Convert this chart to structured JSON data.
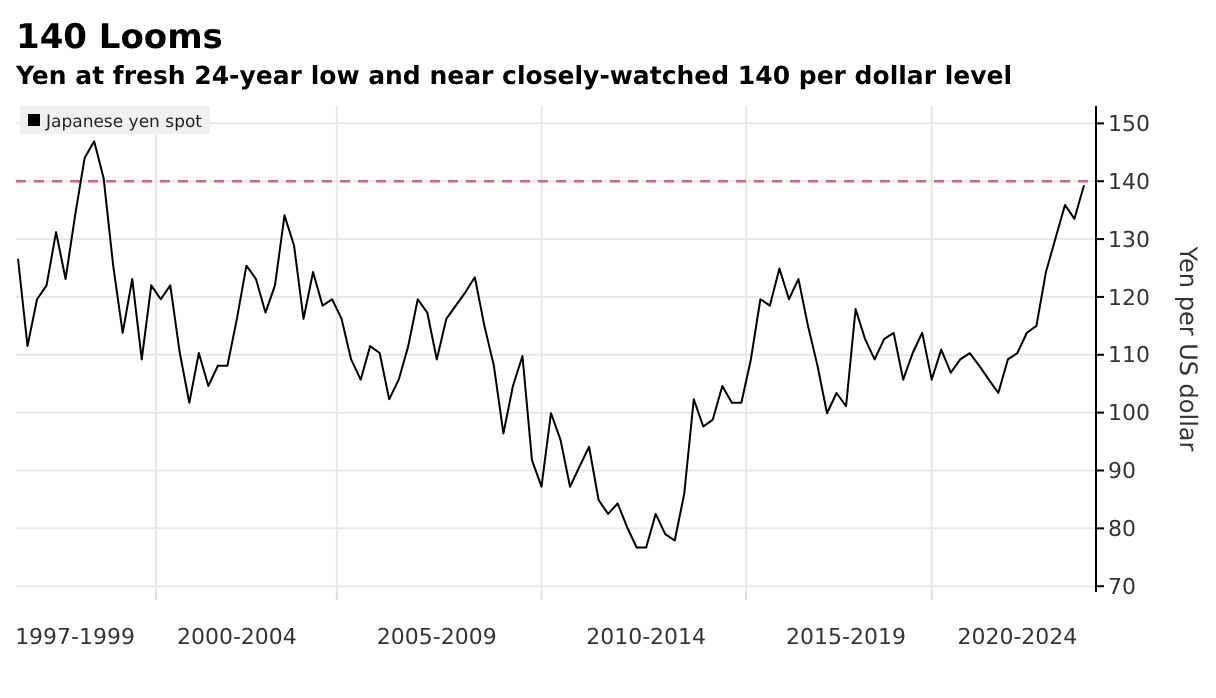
{
  "chart_data": {
    "type": "line",
    "title": "140 Looms",
    "subtitle": "Yen at fresh 24-year low and near closely-watched 140 per dollar level",
    "ylabel": "Yen per US dollar",
    "categories": [
      null,
      null,
      null,
      null,
      null,
      null,
      "1997-1999",
      null,
      null,
      null,
      null,
      null,
      null,
      null,
      null,
      null,
      null,
      null,
      null,
      null,
      null,
      null,
      null,
      "2000-2004",
      null,
      null,
      null,
      null,
      null,
      null,
      null,
      null,
      null,
      null,
      null,
      null,
      null,
      null,
      null,
      null,
      null,
      null,
      null,
      null,
      "2005-2009",
      null,
      null,
      null,
      null,
      null,
      null,
      null,
      null,
      null,
      null,
      null,
      null,
      null,
      null,
      null,
      null,
      null,
      null,
      null,
      null,
      null,
      "2010-2014",
      null,
      null,
      null,
      null,
      null,
      null,
      null,
      null,
      null,
      null,
      null,
      null,
      null,
      null,
      null,
      null,
      null,
      null,
      null,
      null,
      "2015-2019",
      null,
      null,
      null,
      null,
      null,
      null,
      null,
      null,
      null,
      null,
      null,
      null,
      null,
      null,
      null,
      null,
      null,
      "2020-2024",
      null,
      null,
      null,
      null,
      null,
      null,
      null
    ],
    "series": [
      {
        "name": "Japanese yen spot",
        "color": "#000000",
        "values": [
          126.6,
          111.5,
          119.6,
          122,
          131.2,
          123.1,
          134.1,
          144,
          146.9,
          140.5,
          125.4,
          113.8,
          123.1,
          109.2,
          122,
          119.6,
          122,
          110.3,
          101.7,
          110.3,
          104.6,
          108.1,
          108.1,
          116.2,
          125.4,
          123.1,
          117.3,
          122,
          134.1,
          128.9,
          116.2,
          124.3,
          118.5,
          119.6,
          116.2,
          109.2,
          105.7,
          111.5,
          110.3,
          102.3,
          105.7,
          111.5,
          119.6,
          117.3,
          109.2,
          116.2,
          118.5,
          120.8,
          123.4,
          115,
          108.1,
          96.4,
          104.6,
          109.8,
          91.8,
          87.2,
          99.9,
          95.3,
          87.2,
          90.7,
          94.1,
          84.9,
          82.5,
          84.3,
          80.2,
          76.7,
          76.7,
          82.5,
          79,
          77.9,
          86,
          102.3,
          97.6,
          98.8,
          104.6,
          101.7,
          101.7,
          109.2,
          119.6,
          118.5,
          124.9,
          119.6,
          123.1,
          115,
          108.1,
          99.9,
          103.4,
          101.1,
          117.9,
          112.7,
          109.2,
          112.7,
          113.8,
          105.7,
          110.3,
          113.8,
          105.7,
          110.9,
          106.9,
          109.2,
          110.3,
          108.1,
          105.7,
          103.4,
          109.2,
          110.3,
          113.8,
          115,
          124.3,
          130.1,
          135.9,
          133.5,
          139.3
        ]
      }
    ],
    "ylim": [
      69,
      153
    ],
    "yticks": [
      70,
      80,
      90,
      100,
      110,
      120,
      130,
      140,
      150
    ],
    "ref_lines": [
      {
        "axis": "y",
        "value": 140,
        "color": "#e0606e",
        "line_style": "dashed"
      }
    ],
    "grid": true,
    "legend": "top left",
    "line_style": "solid",
    "marker": "none"
  }
}
